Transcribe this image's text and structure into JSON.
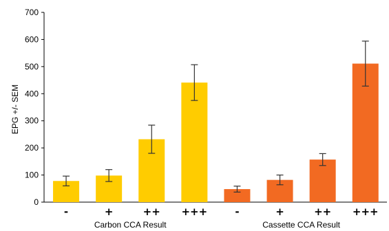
{
  "chart_data": {
    "type": "bar",
    "ylabel": "EPG +/- SEM",
    "xlabel": "",
    "ylim": [
      0,
      700
    ],
    "yticks": [
      0,
      100,
      200,
      300,
      400,
      500,
      600,
      700
    ],
    "grid": false,
    "categories": [
      "-",
      "+",
      "++",
      "+++",
      "-",
      "+",
      "++",
      "+++"
    ],
    "groups": [
      {
        "label": "Carbon CCA Result",
        "color": "#FFCC00",
        "values": [
          78,
          98,
          232,
          441
        ],
        "errors": [
          18,
          22,
          52,
          66
        ]
      },
      {
        "label": "Cassette CCA Result",
        "color": "#F26A22",
        "values": [
          48,
          82,
          157,
          511
        ],
        "errors": [
          11,
          18,
          22,
          83
        ]
      }
    ]
  }
}
